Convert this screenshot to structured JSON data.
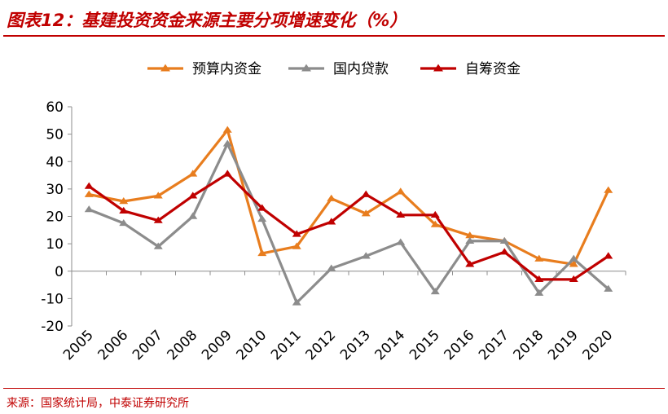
{
  "header": {
    "title": "图表12：基建投资资金来源主要分项增速变化（%）"
  },
  "footer": {
    "source": "来源：国家统计局，中泰证券研究所"
  },
  "colors": {
    "accent": "#C00000",
    "series_orange": "#E87D1E",
    "series_gray": "#8C8C8C",
    "series_red": "#C00000"
  },
  "chart_data": {
    "type": "line",
    "title": "基建投资资金来源主要分项增速变化（%）",
    "xlabel": "",
    "ylabel": "",
    "ylim": [
      -20,
      60
    ],
    "yticks": [
      "60",
      "50",
      "40",
      "30",
      "20",
      "10",
      "0",
      "-10",
      "-20"
    ],
    "grid": false,
    "legend_position": "top",
    "categories": [
      "2005",
      "2006",
      "2007",
      "2008",
      "2009",
      "2010",
      "2011",
      "2012",
      "2013",
      "2014",
      "2015",
      "2016",
      "2017",
      "2018",
      "2019",
      "2020"
    ],
    "series": [
      {
        "name": "预算内资金",
        "color": "#E87D1E",
        "values": [
          28,
          25.5,
          27.5,
          35.5,
          51.5,
          6.5,
          9,
          26.5,
          21,
          29,
          17,
          13,
          11,
          4.5,
          2.5,
          29.5
        ]
      },
      {
        "name": "国内贷款",
        "color": "#8C8C8C",
        "values": [
          22.5,
          17.5,
          9,
          20,
          46.5,
          19,
          -11.5,
          1,
          5.5,
          10.5,
          -7.5,
          11,
          11,
          -8,
          4.5,
          -6.5
        ]
      },
      {
        "name": "自筹资金",
        "color": "#C00000",
        "values": [
          31,
          22,
          18.5,
          27.5,
          35.5,
          23,
          13.5,
          18,
          28,
          20.5,
          20.5,
          2.5,
          7,
          -3,
          -3,
          5.5
        ]
      }
    ]
  }
}
